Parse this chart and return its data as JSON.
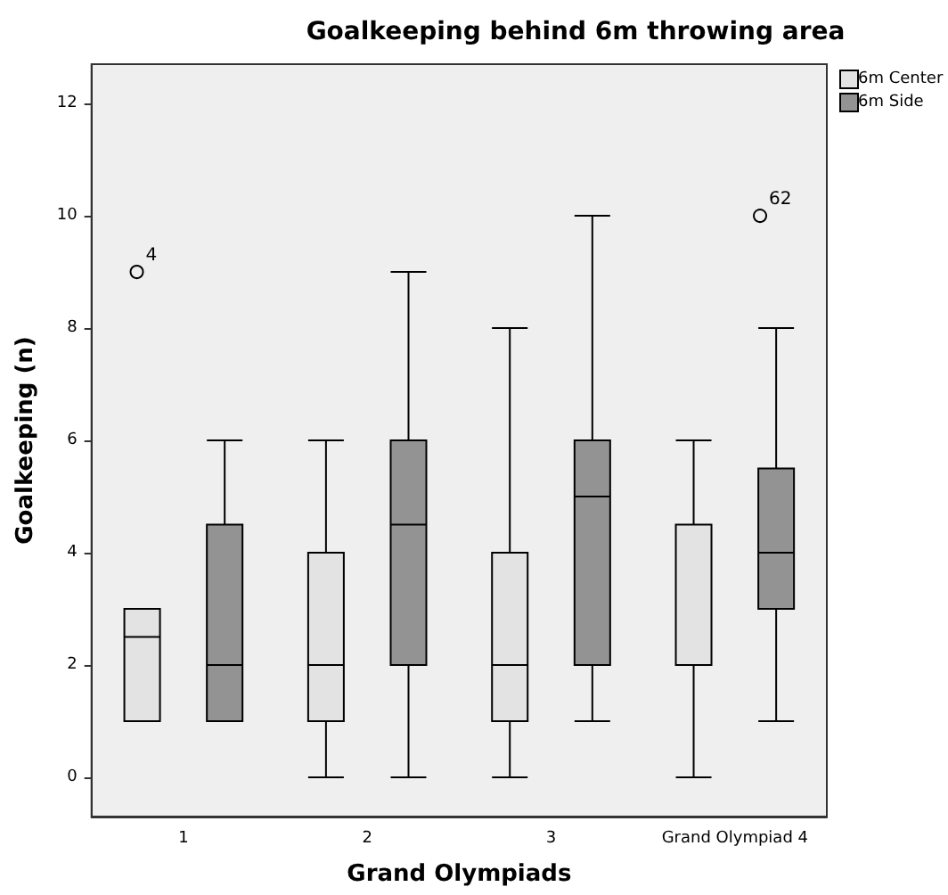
{
  "chart_data": {
    "type": "box",
    "title": "Goalkeeping behind 6m throwing area",
    "xlabel": "Grand Olympiads",
    "ylabel": "Goalkeeping (n)",
    "categories": [
      "1",
      "2",
      "3",
      "Grand Olympiad 4"
    ],
    "series": [
      {
        "name": "6m Center",
        "color": "#e3e3e3",
        "boxes": [
          {
            "low": 1,
            "q1": 1,
            "median": 2.5,
            "q3": 3,
            "high": 3,
            "outliers": [
              9
            ]
          },
          {
            "low": 0,
            "q1": 1,
            "median": 2,
            "q3": 4,
            "high": 6
          },
          {
            "low": 0,
            "q1": 1,
            "median": 2,
            "q3": 4,
            "high": 8
          },
          {
            "low": 0,
            "q1": 2,
            "median": 2,
            "q3": 4.5,
            "high": 6
          }
        ]
      },
      {
        "name": "6m Side",
        "color": "#939393",
        "boxes": [
          {
            "low": 1,
            "q1": 1,
            "median": 2,
            "q3": 4.5,
            "high": 6
          },
          {
            "low": 0,
            "q1": 2,
            "median": 4.5,
            "q3": 6,
            "high": 9
          },
          {
            "low": 1,
            "q1": 2,
            "median": 5,
            "q3": 6,
            "high": 10
          },
          {
            "low": 1,
            "q1": 3,
            "median": 4,
            "q3": 5.5,
            "high": 8,
            "outliers": [
              10
            ]
          }
        ]
      }
    ],
    "annotations": [
      "4",
      "62"
    ],
    "ylim": [
      -0.7,
      12.7
    ],
    "yticks": [
      0,
      2,
      4,
      6,
      8,
      10,
      12
    ],
    "grid": false,
    "legend": "top right"
  }
}
